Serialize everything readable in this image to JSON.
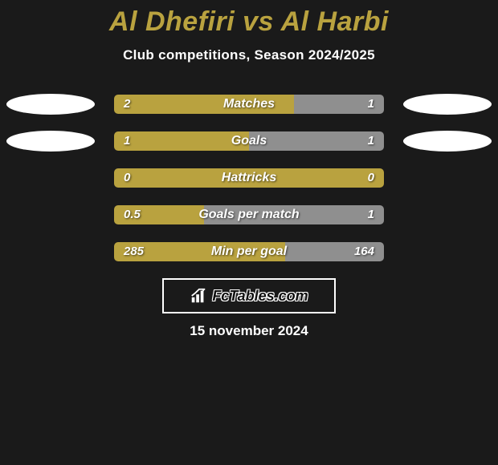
{
  "title": "Al Dhefiri vs Al Harbi",
  "subtitle": "Club competitions, Season 2024/2025",
  "colors": {
    "left_team": "#ffffff",
    "right_team": "#ffffff",
    "left_bar": "#b9a23f",
    "right_bar": "#8f8f8f",
    "background": "#1a1a1a",
    "title": "#b9a23f"
  },
  "rows": [
    {
      "label": "Matches",
      "left_val": "2",
      "right_val": "1",
      "left_pct": 66.7,
      "show_ellipses": true
    },
    {
      "label": "Goals",
      "left_val": "1",
      "right_val": "1",
      "left_pct": 50.0,
      "show_ellipses": true
    },
    {
      "label": "Hattricks",
      "left_val": "0",
      "right_val": "0",
      "left_pct": 100,
      "show_ellipses": false
    },
    {
      "label": "Goals per match",
      "left_val": "0.5",
      "right_val": "1",
      "left_pct": 33.3,
      "show_ellipses": false
    },
    {
      "label": "Min per goal",
      "left_val": "285",
      "right_val": "164",
      "left_pct": 63.5,
      "show_ellipses": false
    }
  ],
  "brand": "FcTables.com",
  "date": "15 november 2024"
}
